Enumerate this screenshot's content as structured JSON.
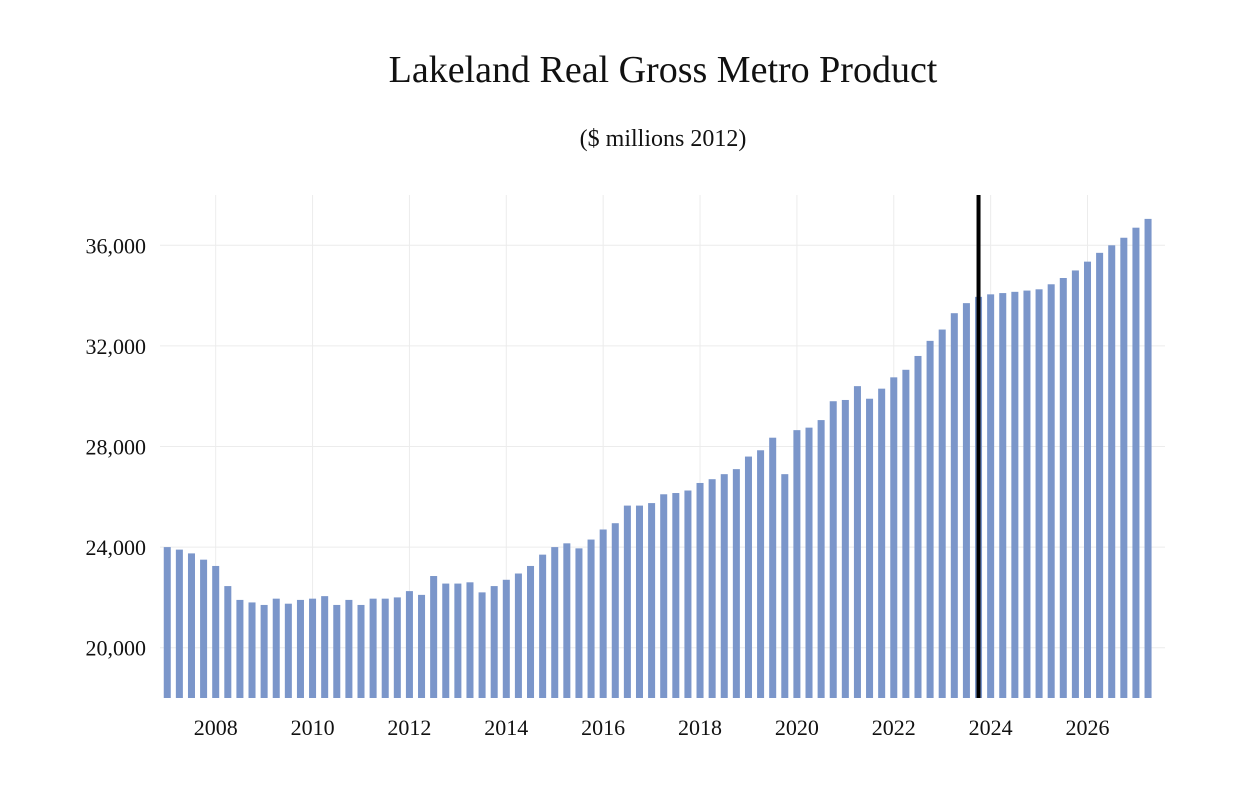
{
  "chart_data": {
    "type": "bar",
    "title": "Lakeland Real Gross Metro Product",
    "subtitle": "($ millions 2012)",
    "xlabel": "",
    "ylabel": "",
    "ylim": [
      18000,
      38000
    ],
    "y_ticks": [
      20000,
      24000,
      28000,
      32000,
      36000
    ],
    "y_tick_labels": [
      "20,000",
      "24,000",
      "28,000",
      "32,000",
      "36,000"
    ],
    "x_ticks": [
      2008,
      2010,
      2012,
      2014,
      2016,
      2018,
      2020,
      2022,
      2024,
      2026
    ],
    "x_tick_labels": [
      "2008",
      "2010",
      "2012",
      "2014",
      "2016",
      "2018",
      "2020",
      "2022",
      "2024",
      "2026"
    ],
    "grid": true,
    "bar_color": "#7b96ca",
    "forecast_marker_year": 2023.75,
    "forecast_marker_color": "#000000",
    "series": [
      {
        "x_start_year": 2007,
        "x_step": 0.25,
        "values": [
          24000,
          23900,
          23750,
          23500,
          23250,
          22450,
          21900,
          21800,
          21700,
          21950,
          21750,
          21900,
          21950,
          22050,
          21700,
          21900,
          21700,
          21950,
          21950,
          22000,
          22250,
          22100,
          22850,
          22550,
          22550,
          22600,
          22200,
          22450,
          22700,
          22950,
          23250,
          23700,
          24000,
          24150,
          23950,
          24300,
          24700,
          24950,
          25650,
          25650,
          25750,
          26100,
          26150,
          26250,
          26550,
          26700,
          26900,
          27100,
          27600,
          27850,
          28350,
          26900,
          28650,
          28750,
          29050,
          29800,
          29850,
          30400,
          29900,
          30300,
          30750,
          31050,
          31600,
          32200,
          32650,
          33300,
          33700,
          33950,
          34050,
          34100,
          34150,
          34200,
          34250,
          34450,
          34700,
          35000,
          35350,
          35700,
          36000,
          36300,
          36700,
          37050
        ]
      }
    ]
  }
}
